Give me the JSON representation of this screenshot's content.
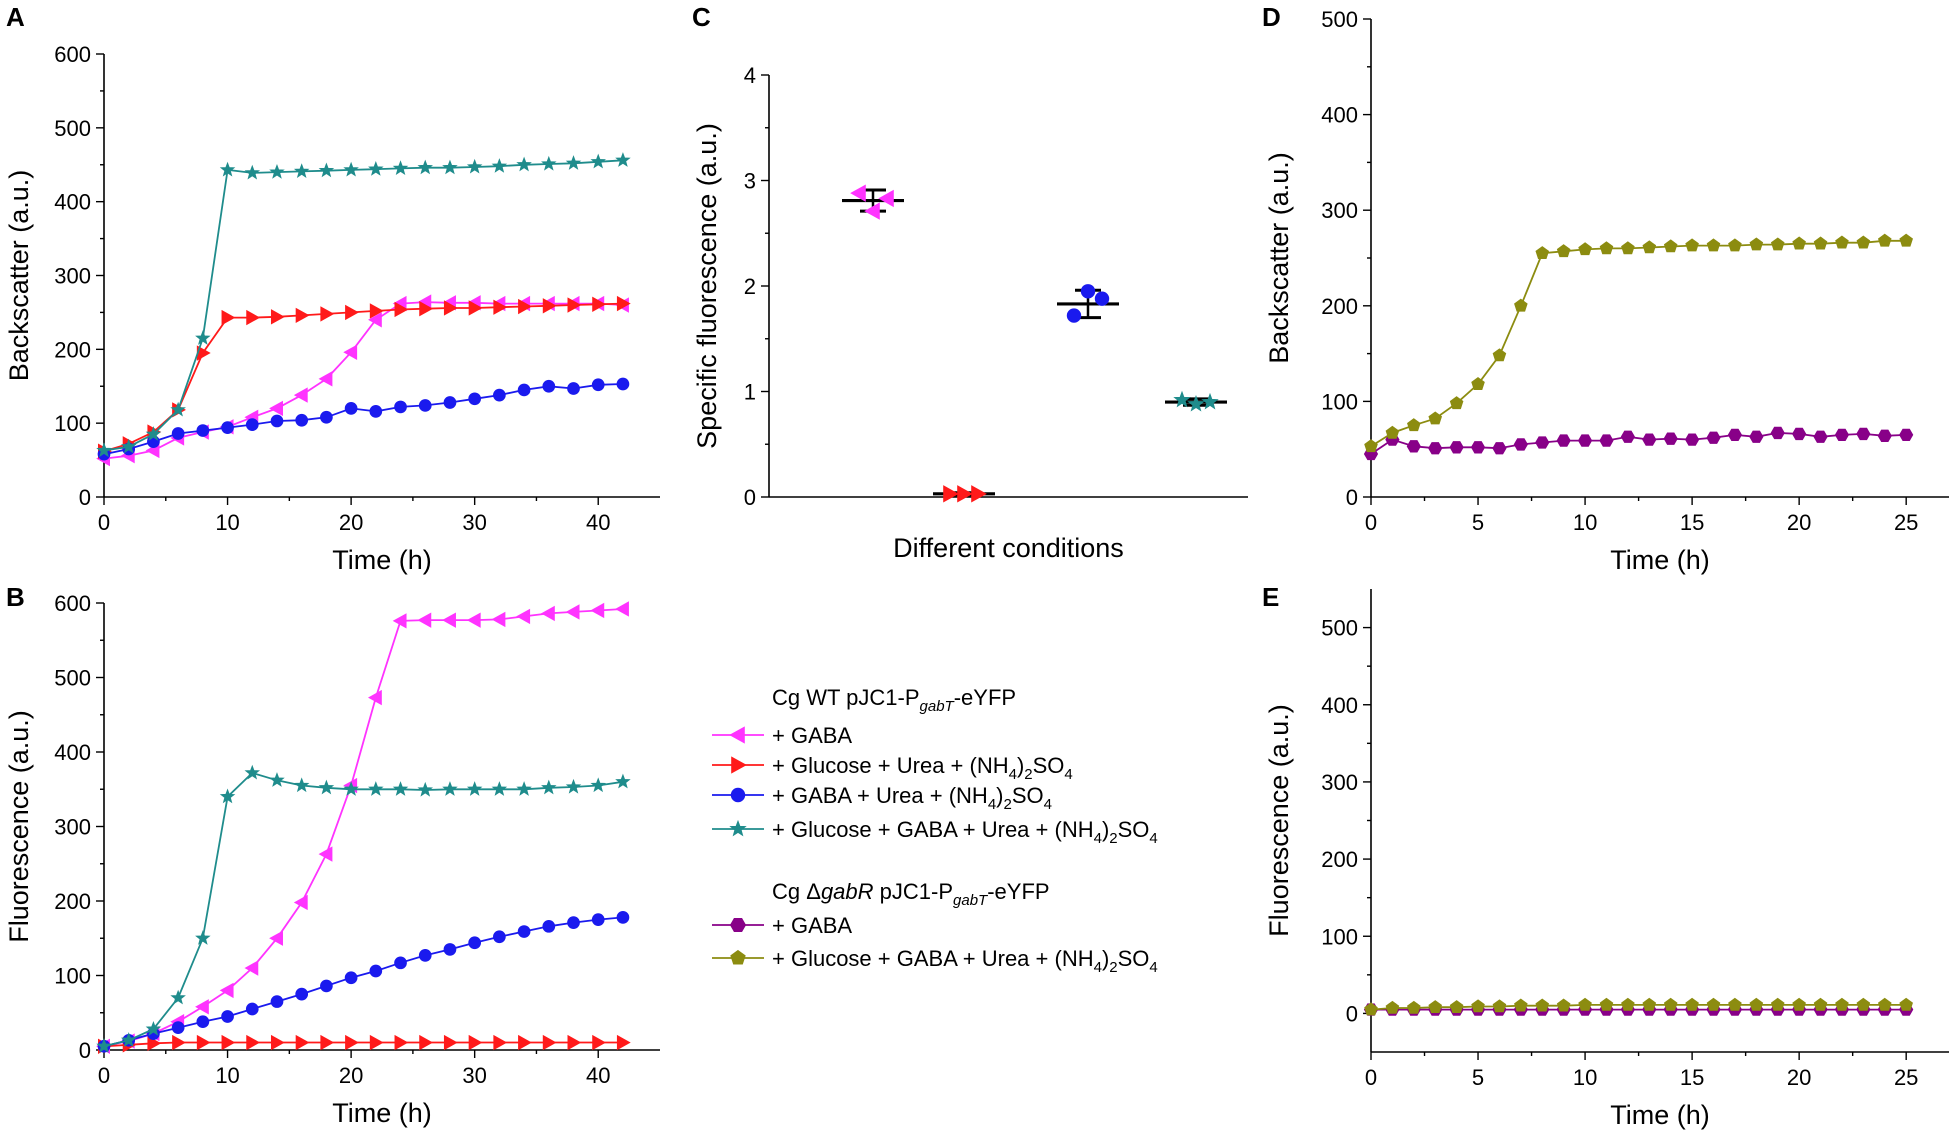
{
  "colors": {
    "gaba": "#ff33ff",
    "glucose_urea": "#ff1a1a",
    "gaba_urea": "#1a1aee",
    "glucose_gaba_urea": "#1f8c8c",
    "dgabR_gaba": "#880088",
    "dgabR_glucose_gaba_urea": "#8c8c10"
  },
  "legend": {
    "group1_title_pre": "Cg WT pJC1-P",
    "group1_title_sub": "gabT",
    "group1_title_post": "-eYFP",
    "group2_title_pre": "Cg Δ",
    "group2_title_italic": "gabR",
    "group2_title_mid": " pJC1-P",
    "group2_title_sub": "gabT",
    "group2_title_post": "-eYFP",
    "items": [
      {
        "label": "+ GABA",
        "color_key": "gaba",
        "marker": "tri-left"
      },
      {
        "label_pre": "+ Glucose + Urea + (NH",
        "sub1": "4",
        "mid": ")",
        "sub2": "2",
        "post": "SO",
        "sub3": "4",
        "color_key": "glucose_urea",
        "marker": "tri-right"
      },
      {
        "label_pre": "+ GABA + Urea + (NH",
        "sub1": "4",
        "mid": ")",
        "sub2": "2",
        "post": "SO",
        "sub3": "4",
        "color_key": "gaba_urea",
        "marker": "circle"
      },
      {
        "label_pre": "+ Glucose + GABA + Urea + (NH",
        "sub1": "4",
        "mid": ")",
        "sub2": "2",
        "post": "SO",
        "sub3": "4",
        "color_key": "glucose_gaba_urea",
        "marker": "star"
      },
      {
        "label": "+ GABA",
        "color_key": "dgabR_gaba",
        "marker": "hexagon"
      },
      {
        "label_pre": "+ Glucose + GABA + Urea + (NH",
        "sub1": "4",
        "mid": ")",
        "sub2": "2",
        "post": "SO",
        "sub3": "4",
        "color_key": "dgabR_glucose_gaba_urea",
        "marker": "pentagon"
      }
    ]
  },
  "chart_data": [
    {
      "panel": "A",
      "type": "line",
      "xlabel": "Time (h)",
      "ylabel": "Backscatter (a.u.)",
      "xlim": [
        0,
        45
      ],
      "ylim": [
        0,
        600
      ],
      "xticks": [
        0,
        10,
        20,
        30,
        40
      ],
      "yticks": [
        0,
        100,
        200,
        300,
        400,
        500,
        600
      ],
      "x": [
        0,
        2,
        4,
        6,
        8,
        10,
        12,
        14,
        16,
        18,
        20,
        22,
        24,
        26,
        28,
        30,
        32,
        34,
        36,
        38,
        40,
        42
      ],
      "series": [
        {
          "name": "+ GABA",
          "color_key": "gaba",
          "marker": "tri-left",
          "values": [
            52,
            56,
            63,
            80,
            88,
            95,
            108,
            120,
            138,
            160,
            196,
            240,
            262,
            264,
            263,
            263,
            262,
            262,
            262,
            262,
            262,
            260
          ]
        },
        {
          "name": "+ Glucose + Urea + (NH4)2SO4",
          "color_key": "glucose_urea",
          "marker": "tri-right",
          "values": [
            62,
            72,
            88,
            118,
            195,
            243,
            243,
            244,
            246,
            248,
            250,
            252,
            254,
            255,
            256,
            256,
            257,
            258,
            259,
            260,
            261,
            262
          ]
        },
        {
          "name": "+ GABA + Urea + (NH4)2SO4",
          "color_key": "gaba_urea",
          "marker": "circle",
          "values": [
            58,
            65,
            75,
            86,
            90,
            94,
            98,
            103,
            104,
            108,
            120,
            116,
            122,
            124,
            128,
            133,
            138,
            145,
            150,
            147,
            152,
            153
          ]
        },
        {
          "name": "+ Glucose + GABA + Urea + (NH4)2SO4",
          "color_key": "glucose_gaba_urea",
          "marker": "star",
          "values": [
            63,
            68,
            85,
            118,
            215,
            443,
            439,
            440,
            441,
            442,
            443,
            444,
            445,
            446,
            446,
            447,
            448,
            450,
            451,
            452,
            454,
            456
          ]
        }
      ]
    },
    {
      "panel": "B",
      "type": "line",
      "xlabel": "Time (h)",
      "ylabel": "Fluorescence (a.u.)",
      "xlim": [
        0,
        45
      ],
      "ylim": [
        0,
        600
      ],
      "xticks": [
        0,
        10,
        20,
        30,
        40
      ],
      "yticks": [
        0,
        100,
        200,
        300,
        400,
        500,
        600
      ],
      "x": [
        0,
        2,
        4,
        6,
        8,
        10,
        12,
        14,
        16,
        18,
        20,
        22,
        24,
        26,
        28,
        30,
        32,
        34,
        36,
        38,
        40,
        42
      ],
      "series": [
        {
          "name": "+ GABA",
          "color_key": "gaba",
          "marker": "tri-left",
          "values": [
            5,
            12,
            22,
            38,
            58,
            80,
            110,
            150,
            198,
            263,
            355,
            473,
            576,
            577,
            577,
            577,
            578,
            582,
            586,
            588,
            590,
            592
          ]
        },
        {
          "name": "+ Glucose + Urea + (NH4)2SO4",
          "color_key": "glucose_urea",
          "marker": "tri-right",
          "values": [
            5,
            7,
            9,
            10,
            10,
            10,
            10,
            10,
            10,
            10,
            10,
            10,
            10,
            10,
            10,
            10,
            10,
            10,
            10,
            10,
            10,
            10
          ]
        },
        {
          "name": "+ GABA + Urea + (NH4)2SO4",
          "color_key": "gaba_urea",
          "marker": "circle",
          "values": [
            5,
            13,
            22,
            30,
            38,
            45,
            55,
            65,
            75,
            86,
            97,
            106,
            117,
            127,
            135,
            144,
            152,
            159,
            166,
            171,
            175,
            178
          ]
        },
        {
          "name": "+ Glucose + GABA + Urea + (NH4)2SO4",
          "color_key": "glucose_gaba_urea",
          "marker": "star",
          "values": [
            5,
            13,
            28,
            70,
            150,
            340,
            372,
            362,
            355,
            352,
            350,
            350,
            350,
            349,
            350,
            350,
            350,
            350,
            352,
            353,
            355,
            360
          ]
        }
      ]
    },
    {
      "panel": "C",
      "type": "scatter",
      "xlabel": "Different conditions",
      "ylabel": "Specific fluorescence (a.u.)",
      "ylim": [
        0,
        4
      ],
      "yticks": [
        0,
        1,
        2,
        3,
        4
      ],
      "groups": [
        {
          "name": "+ GABA",
          "color_key": "gaba",
          "marker": "tri-left",
          "mean": 2.81,
          "error": 0.1,
          "points": [
            2.88,
            2.71,
            2.83
          ]
        },
        {
          "name": "+ Glucose + Urea + (NH4)2SO4",
          "color_key": "glucose_urea",
          "marker": "tri-right",
          "mean": 0.03,
          "error": 0.01,
          "points": [
            0.03,
            0.03,
            0.03
          ]
        },
        {
          "name": "+ GABA + Urea + (NH4)2SO4",
          "color_key": "gaba_urea",
          "marker": "circle",
          "mean": 1.83,
          "error": 0.13,
          "points": [
            1.72,
            1.95,
            1.88
          ]
        },
        {
          "name": "+ Glucose + GABA + Urea + (NH4)2SO4",
          "color_key": "glucose_gaba_urea",
          "marker": "star",
          "mean": 0.9,
          "error": 0.03,
          "points": [
            0.92,
            0.88,
            0.9
          ]
        }
      ]
    },
    {
      "panel": "D",
      "type": "line",
      "xlabel": "Time (h)",
      "ylabel": "Backscatter (a.u.)",
      "xlim": [
        0,
        27
      ],
      "ylim": [
        0,
        500
      ],
      "xticks": [
        0,
        5,
        10,
        15,
        20,
        25
      ],
      "yticks": [
        0,
        100,
        200,
        300,
        400,
        500
      ],
      "x": [
        0,
        1,
        2,
        3,
        4,
        5,
        6,
        7,
        8,
        9,
        10,
        11,
        12,
        13,
        14,
        15,
        16,
        17,
        18,
        19,
        20,
        21,
        22,
        23,
        24,
        25
      ],
      "series": [
        {
          "name": "+ GABA",
          "color_key": "dgabR_gaba",
          "marker": "hexagon",
          "values": [
            45,
            60,
            53,
            51,
            52,
            52,
            51,
            55,
            57,
            59,
            59,
            59,
            63,
            60,
            61,
            60,
            62,
            65,
            63,
            67,
            66,
            63,
            65,
            66,
            64,
            65
          ]
        },
        {
          "name": "+ Glucose + GABA + Urea + (NH4)2SO4",
          "color_key": "dgabR_glucose_gaba_urea",
          "marker": "pentagon",
          "values": [
            53,
            67,
            75,
            82,
            98,
            118,
            148,
            200,
            255,
            257,
            259,
            260,
            260,
            261,
            262,
            263,
            263,
            263,
            264,
            264,
            265,
            265,
            266,
            266,
            268,
            268
          ]
        }
      ]
    },
    {
      "panel": "E",
      "type": "line",
      "xlabel": "Time (h)",
      "ylabel": "Fluorescence (a.u.)",
      "xlim": [
        0,
        27
      ],
      "ylim": [
        -50,
        550
      ],
      "xticks": [
        0,
        5,
        10,
        15,
        20,
        25
      ],
      "yticks": [
        0,
        100,
        200,
        300,
        400,
        500
      ],
      "x": [
        0,
        1,
        2,
        3,
        4,
        5,
        6,
        7,
        8,
        9,
        10,
        11,
        12,
        13,
        14,
        15,
        16,
        17,
        18,
        19,
        20,
        21,
        22,
        23,
        24,
        25
      ],
      "series": [
        {
          "name": "+ GABA",
          "color_key": "dgabR_gaba",
          "marker": "hexagon",
          "values": [
            5,
            5,
            5,
            5,
            5,
            5,
            5,
            5,
            5,
            5,
            5,
            5,
            5,
            5,
            5,
            5,
            5,
            5,
            5,
            5,
            5,
            5,
            5,
            5,
            5,
            5
          ]
        },
        {
          "name": "+ Glucose + GABA + Urea + (NH4)2SO4",
          "color_key": "dgabR_glucose_gaba_urea",
          "marker": "pentagon",
          "values": [
            5,
            7,
            7,
            8,
            8,
            9,
            9,
            10,
            10,
            10,
            11,
            11,
            11,
            11,
            11,
            11,
            11,
            11,
            11,
            11,
            11,
            11,
            11,
            11,
            11,
            11
          ]
        }
      ]
    }
  ]
}
